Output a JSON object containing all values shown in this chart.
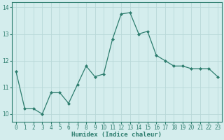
{
  "x": [
    0,
    1,
    2,
    3,
    4,
    5,
    6,
    7,
    8,
    9,
    10,
    11,
    12,
    13,
    14,
    15,
    16,
    17,
    18,
    19,
    20,
    21,
    22,
    23
  ],
  "y": [
    11.6,
    10.2,
    10.2,
    10.0,
    10.8,
    10.8,
    10.4,
    11.1,
    11.8,
    11.4,
    11.5,
    12.8,
    13.75,
    13.8,
    13.0,
    13.1,
    12.2,
    12.0,
    11.8,
    11.8,
    11.7,
    11.7,
    11.7,
    11.4
  ],
  "line_color": "#2d7d6e",
  "marker": "D",
  "marker_size": 2.0,
  "bg_color": "#d4eded",
  "grid_color": "#b8d8d8",
  "xlabel": "Humidex (Indice chaleur)",
  "ylim": [
    9.7,
    14.2
  ],
  "xlim": [
    -0.5,
    23.5
  ],
  "yticks": [
    10,
    11,
    12,
    13,
    14
  ],
  "xticks": [
    0,
    1,
    2,
    3,
    4,
    5,
    6,
    7,
    8,
    9,
    10,
    11,
    12,
    13,
    14,
    15,
    16,
    17,
    18,
    19,
    20,
    21,
    22,
    23
  ],
  "label_fontsize": 6.5,
  "tick_fontsize": 5.5,
  "axis_color": "#2d7d6e"
}
